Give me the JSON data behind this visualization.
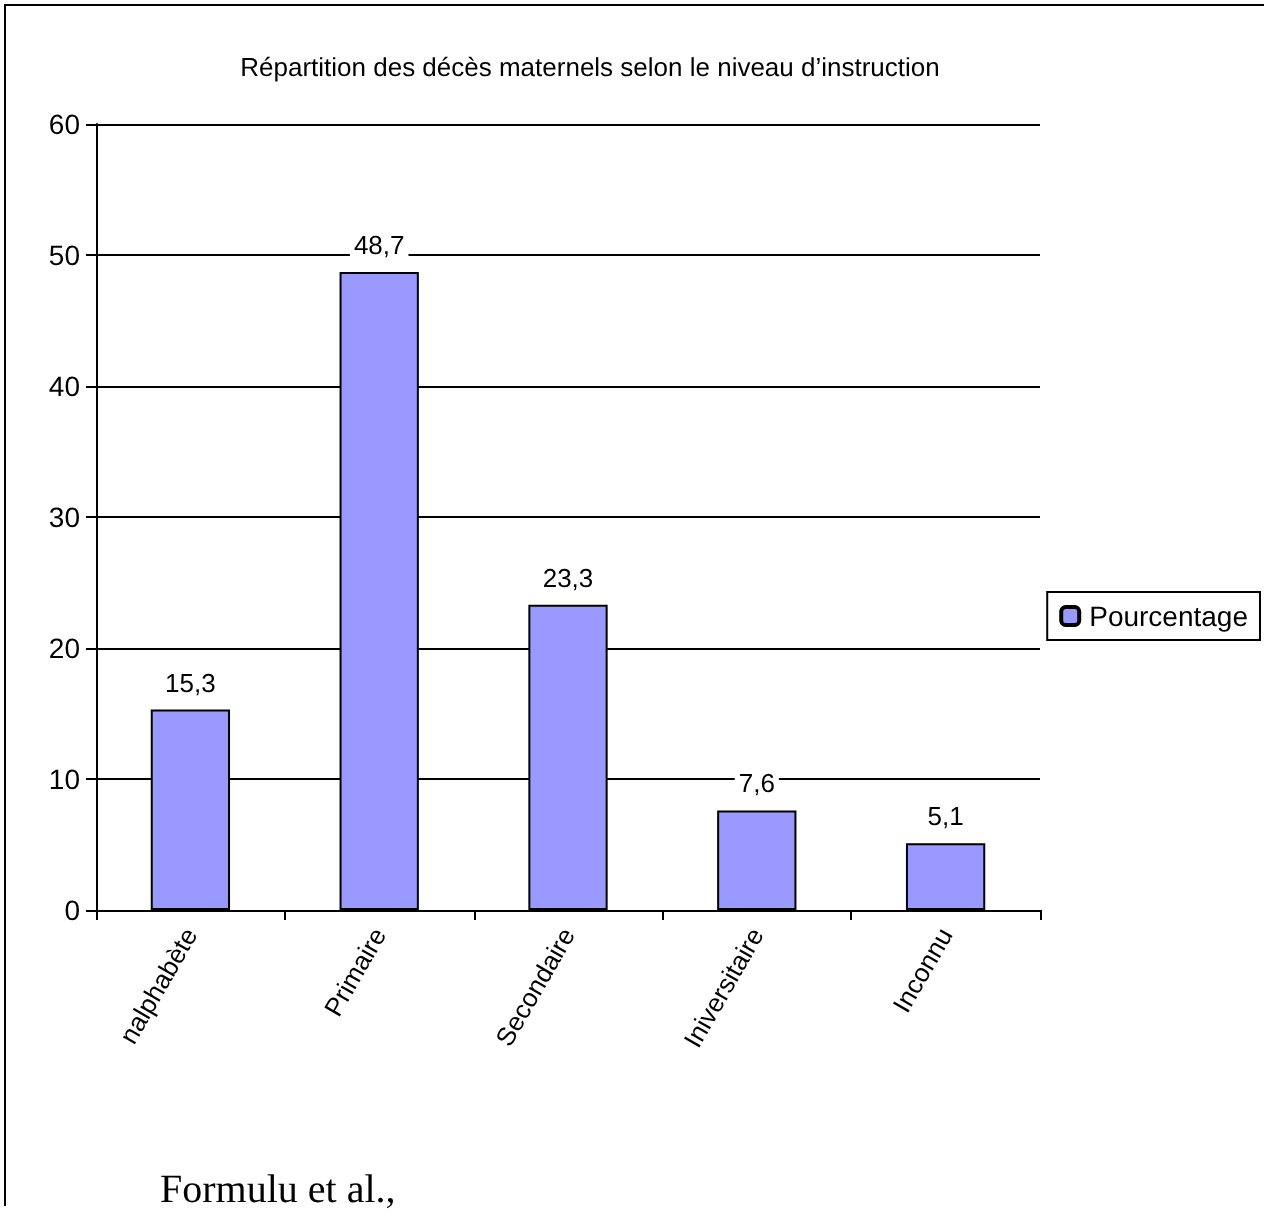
{
  "chart_data": {
    "type": "bar",
    "title": "Répartition des décès maternels selon le niveau d’instruction",
    "categories": [
      "nalphabète",
      "Primaire",
      "Secondaire",
      "Iniversitaire",
      "Inconnu"
    ],
    "series": [
      {
        "name": "Pourcentage",
        "color": "#9999ff",
        "values": [
          15.3,
          48.7,
          23.3,
          7.6,
          5.1
        ],
        "value_labels": [
          "15,3",
          "48,7",
          "23,3",
          "7,6",
          "5,1"
        ]
      }
    ],
    "ylim": [
      0,
      60
    ],
    "yticks": [
      0,
      10,
      20,
      30,
      40,
      50,
      60
    ],
    "grid": "y",
    "legend": "right",
    "annotations": [
      "Formulu et al.,"
    ]
  }
}
